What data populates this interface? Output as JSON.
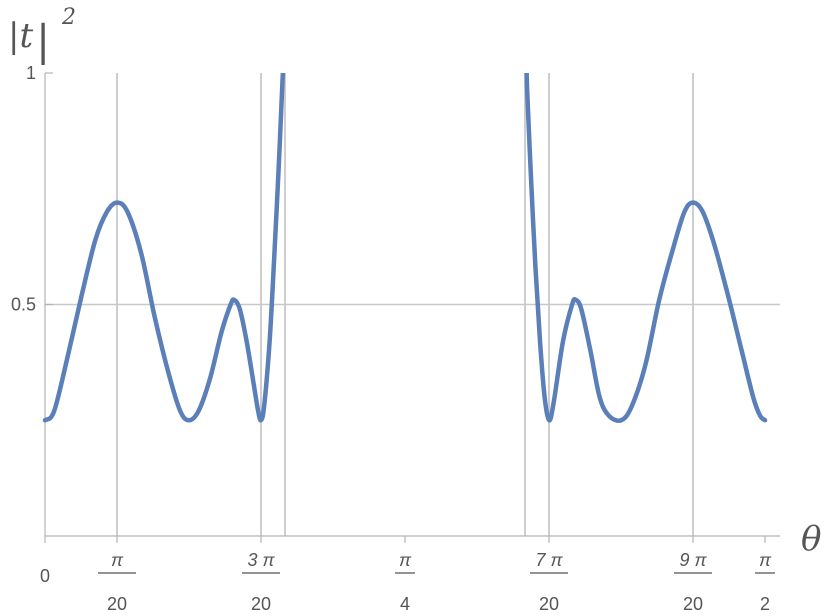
{
  "chart_data": {
    "type": "line",
    "title": "",
    "ylabel": {
      "base": "|t",
      "bar": "|",
      "exponent": "2"
    },
    "xlabel": "θ",
    "xlim": [
      0,
      1.5708
    ],
    "ylim": [
      0,
      1
    ],
    "grid": "vertical lines at selected x ticks; horizontal line at y = 0.5",
    "y_ticks": [
      {
        "value": 0.5,
        "label": "0.5"
      },
      {
        "value": 1,
        "label": "1"
      }
    ],
    "x_ticks": [
      {
        "value": 0,
        "label": "0",
        "num": "",
        "den": ""
      },
      {
        "value": 0.15708,
        "label": "",
        "num": "π",
        "den": "20"
      },
      {
        "value": 0.47124,
        "label": "",
        "num": "3  π",
        "den": "20"
      },
      {
        "value": 0.7854,
        "label": "",
        "num": "π",
        "den": "4"
      },
      {
        "value": 1.09956,
        "label": "",
        "num": "7  π",
        "den": "20"
      },
      {
        "value": 1.41372,
        "label": "",
        "num": "9  π",
        "den": "20"
      },
      {
        "value": 1.5708,
        "label": "",
        "num": "π",
        "den": "2"
      }
    ],
    "vertical_gridlines": [
      0.15708,
      0.47124,
      0.5236,
      1.0472,
      1.09956,
      1.41372
    ],
    "series": [
      {
        "color": "#5b7fb8",
        "points": [
          [
            0.0,
            0.25
          ],
          [
            0.02,
            0.27
          ],
          [
            0.05,
            0.39
          ],
          [
            0.08,
            0.52
          ],
          [
            0.11,
            0.64
          ],
          [
            0.135,
            0.7
          ],
          [
            0.157,
            0.72
          ],
          [
            0.18,
            0.7
          ],
          [
            0.21,
            0.61
          ],
          [
            0.24,
            0.47
          ],
          [
            0.27,
            0.35
          ],
          [
            0.295,
            0.27
          ],
          [
            0.314,
            0.25
          ],
          [
            0.335,
            0.27
          ],
          [
            0.36,
            0.34
          ],
          [
            0.385,
            0.44
          ],
          [
            0.405,
            0.5
          ],
          [
            0.413,
            0.51
          ],
          [
            0.425,
            0.49
          ],
          [
            0.44,
            0.42
          ],
          [
            0.455,
            0.33
          ],
          [
            0.465,
            0.27
          ],
          [
            0.471,
            0.25
          ],
          [
            0.478,
            0.28
          ],
          [
            0.49,
            0.42
          ],
          [
            0.5,
            0.6
          ],
          [
            0.51,
            0.8
          ],
          [
            0.518,
            0.98
          ],
          [
            0.52,
            1.02
          ]
        ]
      },
      {
        "color": "#5b7fb8",
        "points": [
          [
            1.0506,
            1.02
          ],
          [
            1.052,
            0.96
          ],
          [
            1.06,
            0.78
          ],
          [
            1.07,
            0.58
          ],
          [
            1.08,
            0.42
          ],
          [
            1.09,
            0.3
          ],
          [
            1.1,
            0.25
          ],
          [
            1.11,
            0.29
          ],
          [
            1.13,
            0.42
          ],
          [
            1.15,
            0.5
          ],
          [
            1.158,
            0.51
          ],
          [
            1.17,
            0.49
          ],
          [
            1.19,
            0.4
          ],
          [
            1.21,
            0.3
          ],
          [
            1.23,
            0.26
          ],
          [
            1.257,
            0.25
          ],
          [
            1.28,
            0.28
          ],
          [
            1.31,
            0.37
          ],
          [
            1.34,
            0.51
          ],
          [
            1.37,
            0.62
          ],
          [
            1.395,
            0.7
          ],
          [
            1.414,
            0.72
          ],
          [
            1.435,
            0.7
          ],
          [
            1.46,
            0.63
          ],
          [
            1.49,
            0.52
          ],
          [
            1.52,
            0.4
          ],
          [
            1.545,
            0.3
          ],
          [
            1.56,
            0.26
          ],
          [
            1.571,
            0.25
          ]
        ]
      }
    ]
  }
}
